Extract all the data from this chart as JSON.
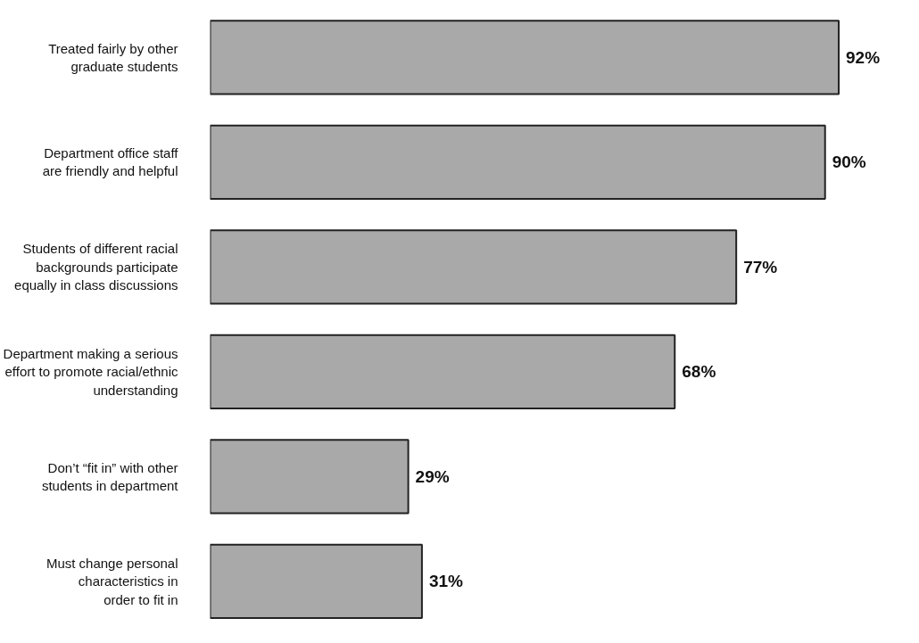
{
  "chart_data": {
    "type": "bar",
    "orientation": "horizontal",
    "categories": [
      "Treated fairly by other\ngraduate students",
      "Department office staff\nare friendly and helpful",
      "Students of different racial\nbackgrounds participate\nequally in class discussions",
      "Department making a serious\neffort to promote racial/ethnic\nunderstanding",
      "Don’t “fit in” with other\nstudents in department",
      "Must change personal\ncharacteristics in\norder to fit in"
    ],
    "values": [
      92,
      90,
      77,
      68,
      29,
      31
    ],
    "value_labels": [
      "92%",
      "90%",
      "77%",
      "68%",
      "29%",
      "31%"
    ],
    "color": "#a9a9a9"
  }
}
